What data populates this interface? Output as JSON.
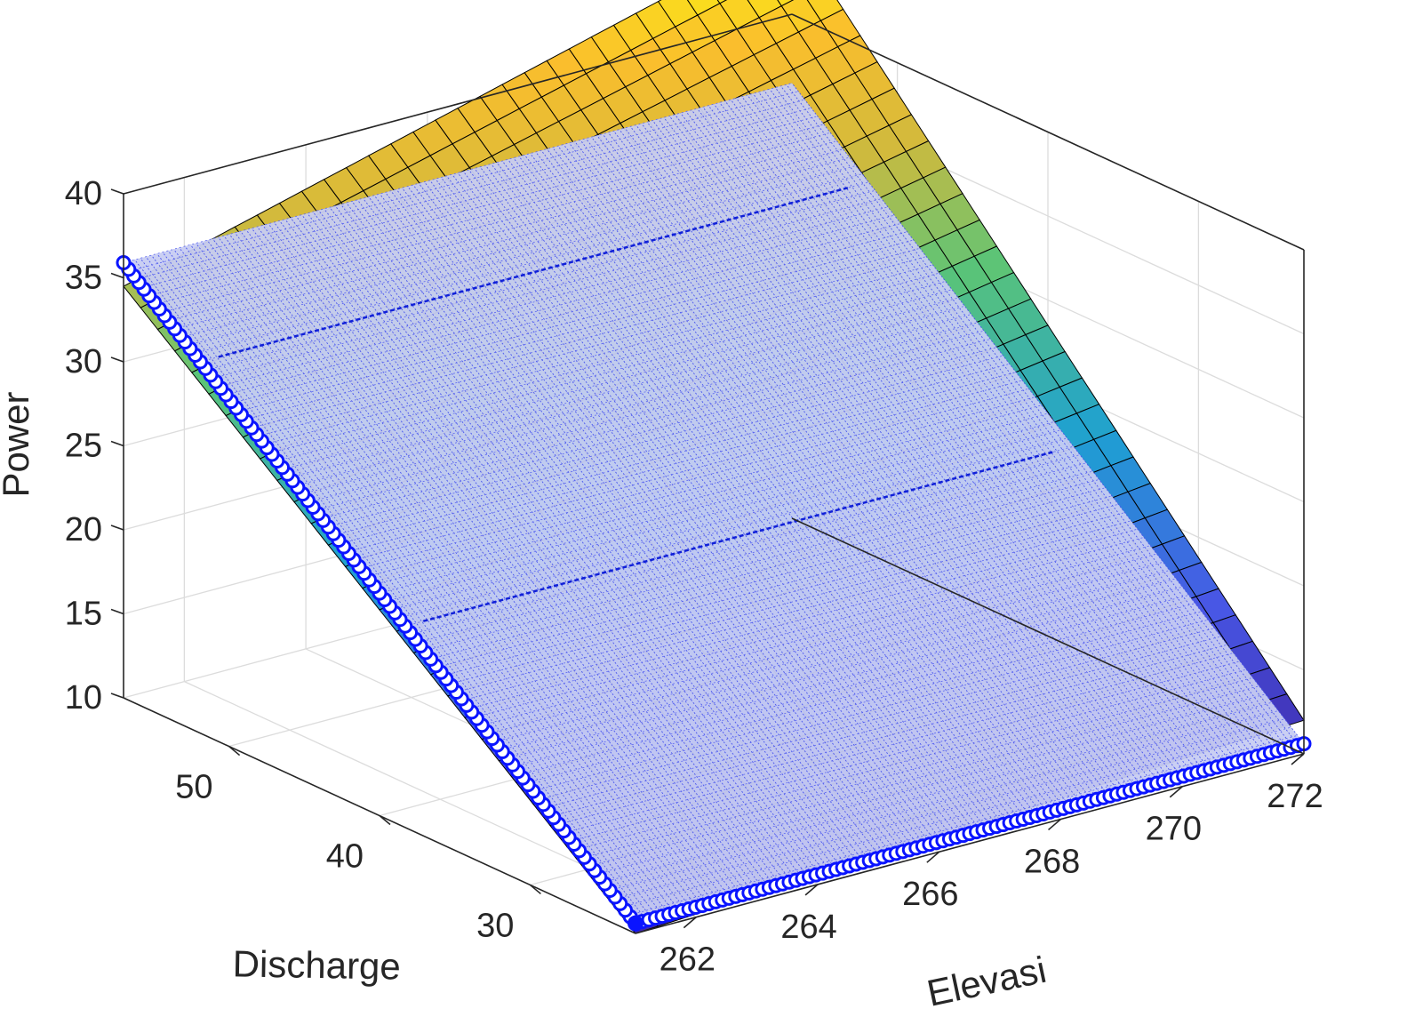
{
  "chart_data": {
    "type": "surface3d",
    "xlabel": "Elevasi",
    "ylabel": "Discharge",
    "zlabel": "Power",
    "xlim": [
      261,
      272
    ],
    "ylim": [
      23,
      57
    ],
    "zlim": [
      10,
      40
    ],
    "x_ticks": [
      "262",
      "264",
      "266",
      "268",
      "270",
      "272"
    ],
    "y_ticks": [
      "30",
      "40",
      "50"
    ],
    "z_ticks": [
      "10",
      "15",
      "20",
      "25",
      "30",
      "35",
      "40"
    ],
    "grid": true,
    "series": [
      {
        "kind": "surface",
        "colormap": "parula",
        "x_range": [
          261,
          272
        ],
        "y_range": [
          23,
          57
        ],
        "z_corners": {
          "x_min_y_min": 10.0,
          "x_max_y_min": 12.0,
          "x_min_y_max": 34.5,
          "x_max_y_max": 45.0
        }
      },
      {
        "kind": "marker-plane",
        "color": "#0000ff",
        "x_range": [
          261,
          272
        ],
        "y_range": [
          23,
          57
        ],
        "z_corners": {
          "x_min_y_min": 10.6,
          "x_max_y_min": 10.6,
          "x_min_y_max": 35.9,
          "x_max_y_max": 35.9
        }
      }
    ]
  }
}
